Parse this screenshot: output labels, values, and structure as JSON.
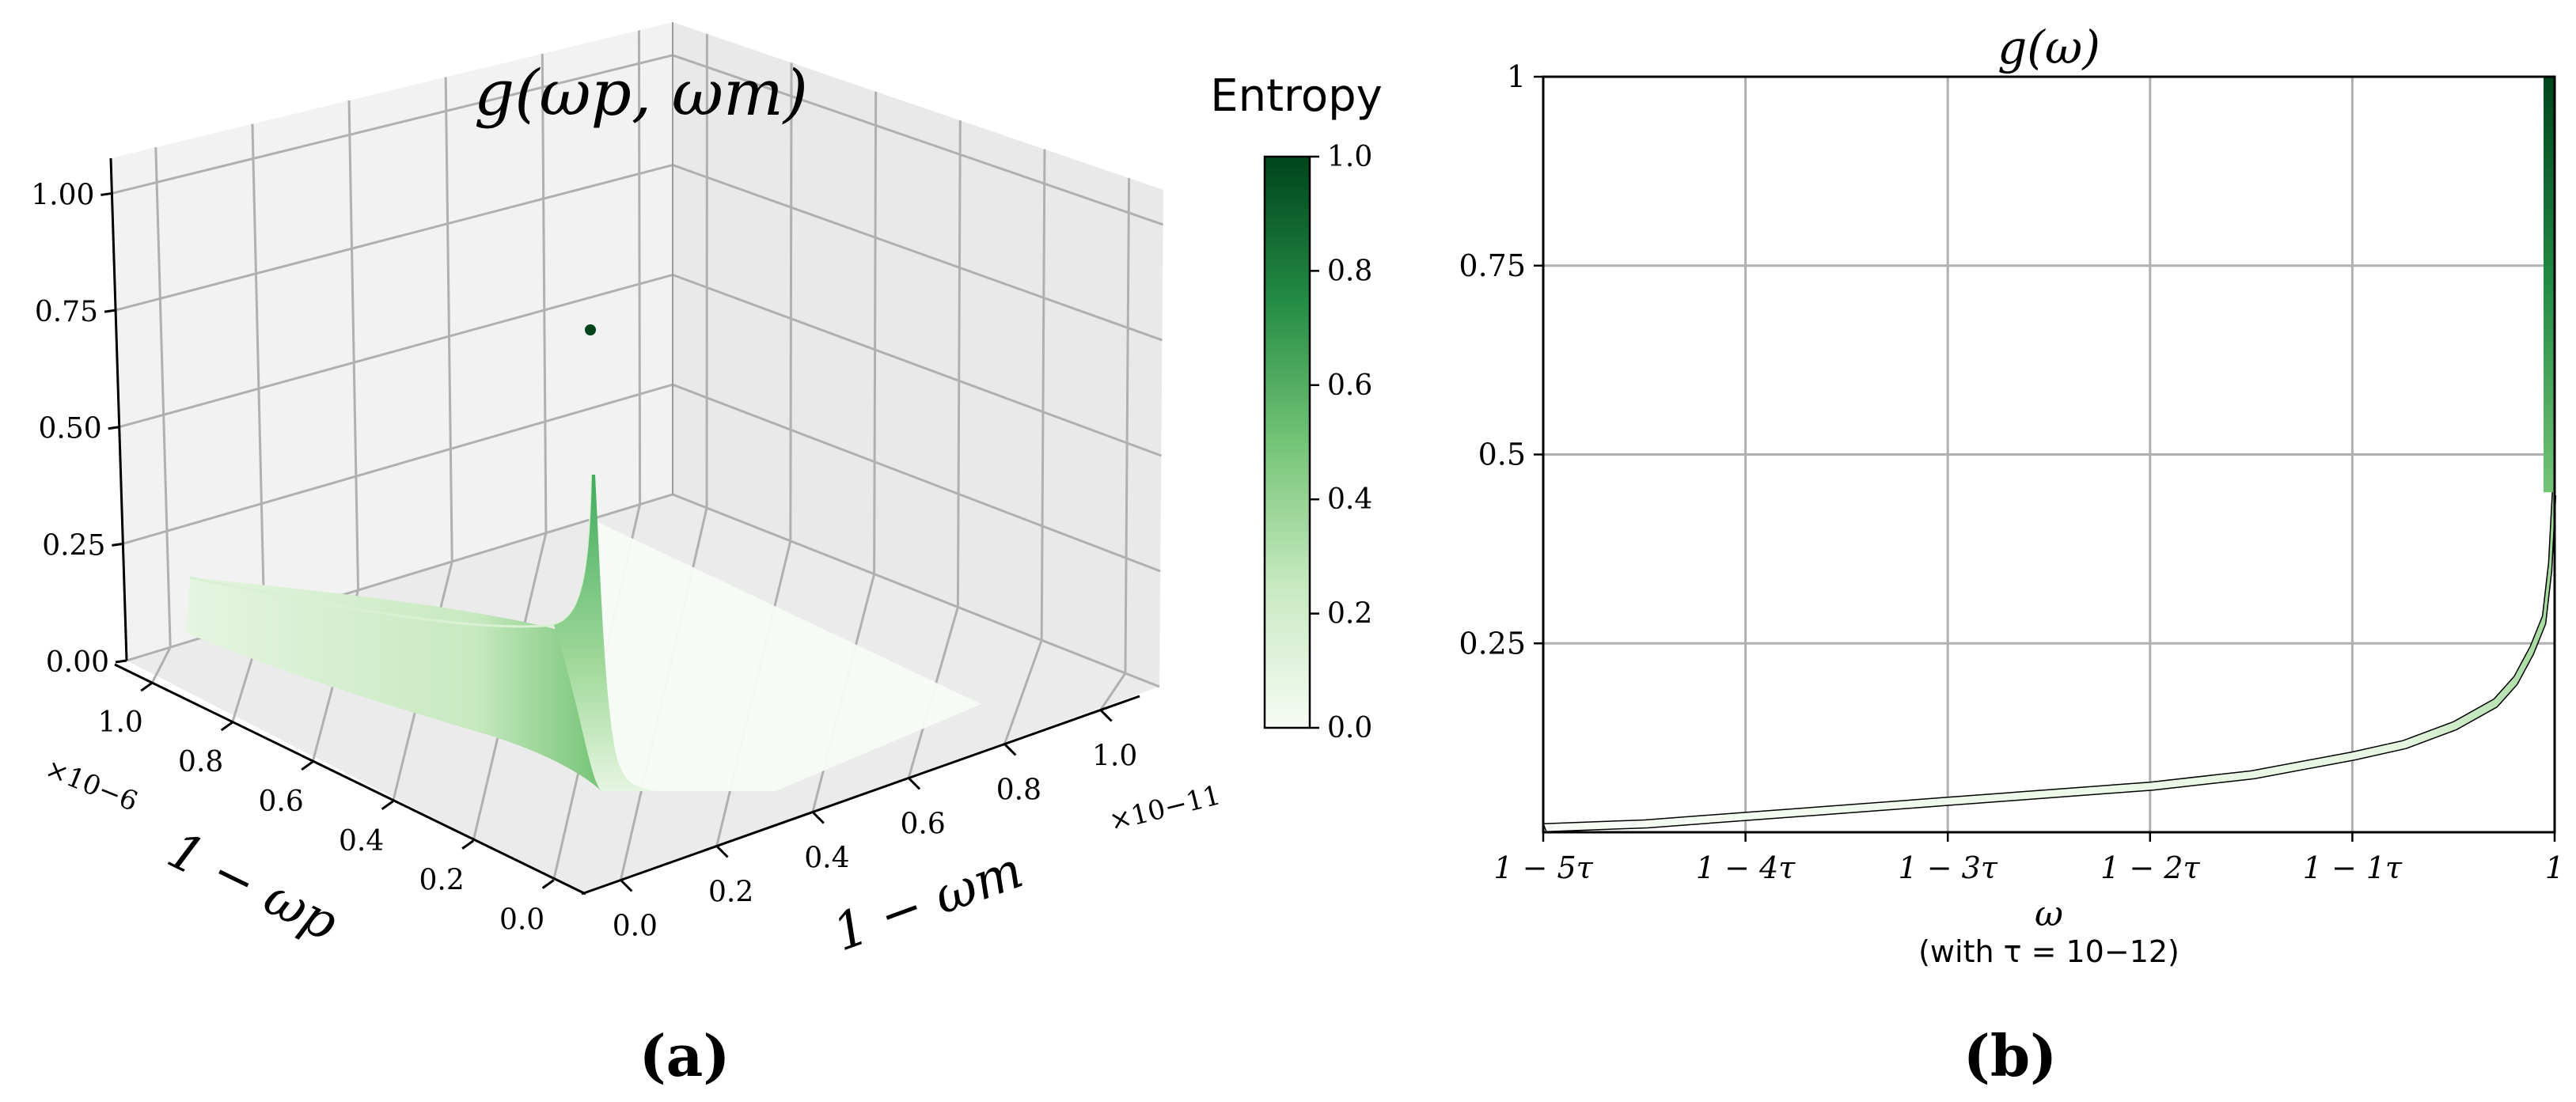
{
  "panels": {
    "a": {
      "label": "(a)"
    },
    "b": {
      "label": "(b)"
    }
  },
  "colors": {
    "colormap": [
      "#f7fcf5",
      "#c7e9c0",
      "#74c476",
      "#238b45",
      "#00441b"
    ],
    "grid": "#b0b0b0"
  },
  "chart_data": [
    {
      "type": "surface3d",
      "title": "g(ωp, ωm)",
      "xlabel": "1 − ωm",
      "ylabel": "1 − ωp",
      "zlabel": "",
      "x_ticks": [
        "0.0",
        "0.2",
        "0.4",
        "0.6",
        "0.8",
        "1.0"
      ],
      "x_multiplier": "×10−11",
      "y_ticks": [
        "0.0",
        "0.2",
        "0.4",
        "0.6",
        "0.8",
        "1.0"
      ],
      "y_multiplier": "×10−6",
      "z_ticks": [
        "0.00",
        "0.25",
        "0.50",
        "0.75",
        "1.00"
      ],
      "xlim": [
        0,
        1.0
      ],
      "ylim": [
        0,
        1.0
      ],
      "zlim": [
        0,
        1.0
      ],
      "colorbar": {
        "label": "Entropy",
        "ticks": [
          "0.0",
          "0.2",
          "0.4",
          "0.6",
          "0.8",
          "1.0"
        ],
        "range": [
          0,
          1
        ]
      },
      "isolated_point": {
        "x": 0,
        "y": 0,
        "z": 1.0
      },
      "surface_profile": {
        "x": [
          0.0,
          0.1,
          0.2,
          0.3,
          0.4,
          0.5,
          0.6,
          0.7,
          0.8,
          0.9,
          1.0
        ],
        "z": [
          0.2,
          0.15,
          0.12,
          0.1,
          0.09,
          0.08,
          0.07,
          0.06,
          0.05,
          0.04,
          0.04
        ]
      },
      "grid": true
    },
    {
      "type": "area",
      "title": "g(ω)",
      "xlabel": "ω",
      "xlabel_note": "(with τ = 10−12)",
      "ylabel": "",
      "x_ticks": [
        "1 − 5τ",
        "1 − 4τ",
        "1 − 3τ",
        "1 − 2τ",
        "1 − 1τ",
        "1"
      ],
      "y_ticks": [
        "0.25",
        "0.5",
        "0.75",
        "1"
      ],
      "xlim": [
        -5,
        0
      ],
      "ylim": [
        0,
        1
      ],
      "series": [
        {
          "x": [
            -5.0,
            -4.5,
            -4.0,
            -3.5,
            -3.0,
            -2.5,
            -2.0,
            -1.5,
            -1.0,
            -0.75,
            -0.5,
            -0.3,
            -0.2,
            -0.12,
            -0.06,
            -0.03,
            -0.01
          ],
          "y": [
            0.005,
            0.01,
            0.02,
            0.03,
            0.04,
            0.05,
            0.06,
            0.075,
            0.1,
            0.115,
            0.14,
            0.17,
            0.2,
            0.24,
            0.28,
            0.35,
            0.45
          ]
        }
      ],
      "vertical_bar_at_1": {
        "x": 0,
        "y_top": 1.0
      },
      "grid": true
    }
  ]
}
